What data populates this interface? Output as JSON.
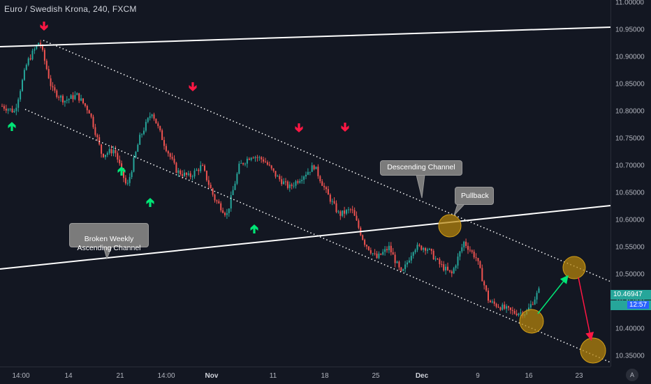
{
  "header": {
    "title": "Euro / Swedish Krona, 240, FXCM"
  },
  "y_axis": {
    "ticks": [
      "11.00000",
      "10.95000",
      "10.90000",
      "10.85000",
      "10.80000",
      "10.75000",
      "10.70000",
      "10.65000",
      "10.60000",
      "10.55000",
      "10.50000",
      "10.45000",
      "10.40000",
      "10.35000"
    ],
    "tick_values": [
      11.0,
      10.95,
      10.9,
      10.85,
      10.8,
      10.75,
      10.7,
      10.65,
      10.6,
      10.55,
      10.5,
      10.45,
      10.4,
      10.35
    ]
  },
  "x_axis": {
    "ticks": [
      "14:00",
      "14",
      "21",
      "14:00",
      "Nov",
      "11",
      "18",
      "25",
      "Dec",
      "9",
      "16",
      "23"
    ],
    "bold": [
      false,
      false,
      false,
      false,
      true,
      false,
      false,
      false,
      true,
      false,
      false,
      false
    ]
  },
  "price": {
    "current": "10.46947",
    "countdown": "12:57",
    "badge_color": "#26a69a",
    "countdown_color": "#2962ff"
  },
  "annotations": {
    "descending_channel": "Descending Channel",
    "pullback": "Pullback",
    "broken_channel": "Broken Weekly\nAscending Channel"
  },
  "colors": {
    "up": "#26a69a",
    "down": "#ef5350",
    "arrow_up": "#00e676",
    "arrow_down": "#ff1744",
    "circle": "#b8860b",
    "line": "#ffffff"
  },
  "controls": {
    "auto_label": "A"
  },
  "chart_data": {
    "type": "candlestick",
    "title": "Euro / Swedish Krona, 240, FXCM",
    "ylim": [
      10.35,
      11.0
    ],
    "series": [
      {
        "name": "Euro / Swedish Krona",
        "close_path": [
          10.81,
          10.8,
          10.89,
          10.93,
          10.84,
          10.82,
          10.83,
          10.8,
          10.72,
          10.73,
          10.66,
          10.75,
          10.8,
          10.74,
          10.69,
          10.68,
          10.7,
          10.64,
          10.61,
          10.7,
          10.72,
          10.71,
          10.68,
          10.66,
          10.68,
          10.7,
          10.65,
          10.61,
          10.62,
          10.56,
          10.53,
          10.55,
          10.5,
          10.55,
          10.55,
          10.52,
          10.5,
          10.56,
          10.53,
          10.45,
          10.44,
          10.43,
          10.43,
          10.47
        ]
      }
    ],
    "signal_arrows": {
      "down_count": 5,
      "up_count": 4
    },
    "projection": [
      "10.52",
      "10.37"
    ]
  }
}
